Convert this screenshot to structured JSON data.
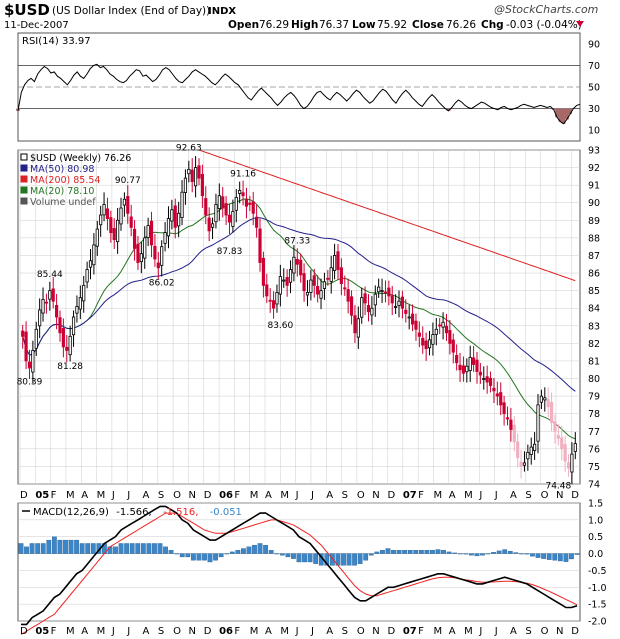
{
  "header": {
    "symbol": "$USD",
    "title": "(US Dollar Index (End of Day))",
    "exchange": "INDX",
    "date": "11-Dec-2007",
    "open_label": "Open",
    "open": "76.29",
    "high_label": "High",
    "high": "76.37",
    "low_label": "Low",
    "low": "75.92",
    "close_label": "Close",
    "close": "76.26",
    "chg_label": "Chg",
    "chg": "-0.03 (-0.04%)",
    "logo": "@StockCharts.com"
  },
  "colors": {
    "up": "#000000",
    "down": "#cc0033",
    "down_light": "#f0b0c0",
    "ma50": "#22228a",
    "ma200": "#dd2222",
    "ma20": "#227722",
    "hist": "#3a86c8",
    "signal": "#ee2222",
    "macd": "#000000",
    "grid": "#cccccc",
    "border": "#555555"
  },
  "chart_data": [
    {
      "type": "line",
      "panel": "rsi",
      "label": "RSI(14) 33.97",
      "ylim": [
        0,
        100
      ],
      "y_ticks": [
        "90",
        "70",
        "50",
        "30",
        "10"
      ],
      "reference_lines": [
        70,
        50,
        30
      ],
      "values": [
        28,
        45,
        52,
        56,
        58,
        55,
        62,
        66,
        69,
        67,
        63,
        64,
        60,
        58,
        55,
        52,
        56,
        61,
        64,
        60,
        58,
        62,
        67,
        70,
        71,
        68,
        69,
        66,
        62,
        60,
        57,
        55,
        54,
        56,
        60,
        63,
        66,
        65,
        60,
        61,
        58,
        55,
        57,
        61,
        66,
        68,
        66,
        62,
        58,
        55,
        54,
        57,
        60,
        64,
        66,
        64,
        62,
        60,
        57,
        54,
        52,
        55,
        59,
        62,
        60,
        57,
        54,
        52,
        48,
        44,
        40,
        38,
        42,
        46,
        49,
        46,
        43,
        40,
        36,
        33,
        36,
        40,
        43,
        45,
        42,
        38,
        33,
        30,
        32,
        36,
        41,
        45,
        46,
        43,
        40,
        38,
        42,
        45,
        43,
        40,
        37,
        40,
        44,
        47,
        45,
        41,
        38,
        35,
        37,
        41,
        45,
        48,
        46,
        42,
        38,
        35,
        40,
        44,
        47,
        44,
        40,
        37,
        34,
        32,
        36,
        40,
        43,
        40,
        36,
        33,
        30,
        28,
        31,
        35,
        38,
        36,
        33,
        31,
        30,
        32,
        34,
        36,
        35,
        33,
        31,
        30,
        29,
        31,
        32,
        30,
        29,
        30,
        31,
        33,
        34,
        33,
        32,
        31,
        32,
        33,
        32,
        31,
        32,
        29,
        22,
        18,
        16,
        20,
        25,
        30,
        33,
        34
      ]
    },
    {
      "type": "candlestick",
      "panel": "price",
      "title": "$USD (Weekly) 76.26",
      "ylim": [
        74,
        93
      ],
      "y_ticks": [
        "93",
        "92",
        "91",
        "90",
        "89",
        "88",
        "87",
        "86",
        "85",
        "84",
        "83",
        "82",
        "81",
        "80",
        "79",
        "78",
        "77",
        "76",
        "75",
        "74"
      ],
      "x_ticks": [
        "D",
        "05",
        "F",
        "M",
        "A",
        "M",
        "J",
        "J",
        "A",
        "S",
        "O",
        "N",
        "D",
        "06",
        "F",
        "M",
        "A",
        "M",
        "J",
        "J",
        "A",
        "S",
        "O",
        "N",
        "D",
        "07",
        "F",
        "M",
        "A",
        "M",
        "J",
        "J",
        "A",
        "S",
        "O",
        "N",
        "D"
      ],
      "legend": [
        {
          "text": "$USD (Weekly) 76.26",
          "color": "#000000"
        },
        {
          "text": "MA(50) 80.98",
          "color": "#22228a"
        },
        {
          "text": "MA(200) 85.54",
          "color": "#dd2222"
        },
        {
          "text": "MA(20) 78.10",
          "color": "#227722"
        },
        {
          "text": "Volume undef",
          "color": "#555555"
        }
      ],
      "annotations": [
        {
          "text": "80.39",
          "week": 2,
          "value": 80.39,
          "pos": "below"
        },
        {
          "text": "85.44",
          "week": 8,
          "value": 85.44,
          "pos": "above"
        },
        {
          "text": "81.28",
          "week": 14,
          "value": 81.28,
          "pos": "below"
        },
        {
          "text": "90.77",
          "week": 31,
          "value": 90.77,
          "pos": "above"
        },
        {
          "text": "86.02",
          "week": 41,
          "value": 86.02,
          "pos": "below"
        },
        {
          "text": "92.63",
          "week": 49,
          "value": 92.63,
          "pos": "above"
        },
        {
          "text": "91.16",
          "week": 65,
          "value": 91.16,
          "pos": "above"
        },
        {
          "text": "87.83",
          "week": 61,
          "value": 87.83,
          "pos": "below"
        },
        {
          "text": "83.60",
          "week": 76,
          "value": 83.6,
          "pos": "below"
        },
        {
          "text": "87.33",
          "week": 81,
          "value": 87.33,
          "pos": "above"
        },
        {
          "text": "74.48",
          "week": 158,
          "value": 74.48,
          "pos": "below"
        }
      ],
      "closes": [
        82.4,
        81.0,
        80.6,
        81.6,
        82.8,
        83.9,
        84.5,
        84.3,
        85.0,
        84.4,
        83.5,
        82.6,
        81.8,
        81.6,
        82.4,
        83.5,
        84.1,
        84.6,
        85.3,
        86.2,
        86.7,
        87.6,
        88.5,
        89.3,
        89.9,
        89.1,
        88.3,
        87.9,
        89.0,
        89.7,
        90.2,
        89.4,
        88.6,
        87.4,
        86.6,
        87.1,
        88.0,
        88.7,
        87.6,
        86.8,
        86.3,
        87.5,
        88.3,
        89.1,
        89.6,
        88.6,
        89.4,
        90.6,
        91.4,
        91.9,
        91.2,
        92.0,
        91.4,
        90.4,
        89.3,
        88.4,
        88.8,
        89.9,
        90.4,
        89.7,
        89.3,
        88.9,
        89.5,
        90.3,
        90.7,
        90.4,
        89.8,
        89.9,
        89.4,
        88.6,
        86.6,
        85.3,
        84.7,
        84.4,
        84.0,
        84.9,
        85.8,
        85.6,
        85.3,
        86.2,
        86.9,
        86.5,
        85.9,
        85.0,
        84.9,
        85.6,
        85.3,
        84.8,
        85.0,
        85.5,
        85.7,
        86.3,
        87.0,
        86.2,
        85.4,
        85.1,
        84.4,
        83.6,
        82.6,
        83.4,
        84.6,
        84.3,
        83.8,
        84.0,
        84.8,
        85.2,
        85.0,
        84.9,
        84.7,
        84.3,
        84.1,
        84.4,
        84.0,
        83.7,
        83.5,
        83.1,
        82.8,
        82.4,
        81.9,
        81.7,
        82.2,
        82.5,
        82.8,
        83.0,
        83.2,
        82.6,
        82.0,
        81.5,
        80.9,
        80.5,
        80.3,
        80.7,
        81.2,
        80.8,
        80.4,
        80.2,
        80.0,
        79.8,
        79.6,
        79.3,
        79.0,
        78.5,
        78.0,
        77.7,
        77.1,
        76.4,
        75.5,
        75.0,
        75.2,
        75.8,
        76.1,
        76.26,
        78.5,
        79.0,
        78.9,
        78.4,
        77.5,
        77.0,
        76.6,
        76.0,
        75.3,
        74.9,
        75.7,
        76.3
      ]
    },
    {
      "type": "line",
      "panel": "macd",
      "label": "MACD(12,26,9) -1.566, -1.516, -0.051",
      "label_parts": [
        "MACD(12,26,9)",
        "-1.566,",
        "-1.516,",
        "-0.051"
      ],
      "ylim": [
        -2.0,
        1.5
      ],
      "y_ticks": [
        "1.5",
        "1.0",
        "0.5",
        "0.0",
        "-0.5",
        "-1.0",
        "-1.5",
        "-2.0"
      ],
      "series_macd": [
        -2.1,
        -2.1,
        -1.9,
        -1.8,
        -1.7,
        -1.5,
        -1.3,
        -1.2,
        -1.0,
        -0.8,
        -0.6,
        -0.5,
        -0.3,
        -0.1,
        0.1,
        0.3,
        0.4,
        0.5,
        0.7,
        0.8,
        0.9,
        1.0,
        1.1,
        1.2,
        1.3,
        1.4,
        1.4,
        1.3,
        1.2,
        1.0,
        0.9,
        0.7,
        0.6,
        0.5,
        0.4,
        0.4,
        0.5,
        0.6,
        0.7,
        0.8,
        0.9,
        1.0,
        1.1,
        1.2,
        1.2,
        1.1,
        1.0,
        0.9,
        0.8,
        0.7,
        0.5,
        0.4,
        0.3,
        0.1,
        -0.1,
        -0.3,
        -0.5,
        -0.7,
        -0.9,
        -1.1,
        -1.3,
        -1.4,
        -1.4,
        -1.3,
        -1.2,
        -1.1,
        -1.0,
        -1.0,
        -0.95,
        -0.9,
        -0.85,
        -0.8,
        -0.75,
        -0.7,
        -0.65,
        -0.6,
        -0.6,
        -0.65,
        -0.7,
        -0.75,
        -0.8,
        -0.85,
        -0.9,
        -0.9,
        -0.85,
        -0.8,
        -0.75,
        -0.7,
        -0.75,
        -0.8,
        -0.85,
        -0.9,
        -1.0,
        -1.1,
        -1.2,
        -1.3,
        -1.4,
        -1.5,
        -1.6,
        -1.6,
        -1.55
      ],
      "series_signal": [
        -2.4,
        -2.3,
        -2.2,
        -2.1,
        -2.0,
        -1.9,
        -1.8,
        -1.6,
        -1.4,
        -1.2,
        -1.0,
        -0.8,
        -0.6,
        -0.4,
        -0.2,
        0.0,
        0.2,
        0.3,
        0.4,
        0.5,
        0.6,
        0.7,
        0.8,
        0.9,
        1.0,
        1.1,
        1.2,
        1.2,
        1.2,
        1.1,
        1.0,
        0.9,
        0.8,
        0.7,
        0.65,
        0.6,
        0.6,
        0.6,
        0.65,
        0.7,
        0.75,
        0.8,
        0.85,
        0.9,
        0.95,
        1.0,
        1.0,
        0.95,
        0.9,
        0.85,
        0.75,
        0.65,
        0.55,
        0.4,
        0.25,
        0.05,
        -0.15,
        -0.35,
        -0.55,
        -0.75,
        -0.95,
        -1.1,
        -1.2,
        -1.25,
        -1.25,
        -1.2,
        -1.15,
        -1.1,
        -1.05,
        -1.0,
        -0.95,
        -0.9,
        -0.85,
        -0.8,
        -0.75,
        -0.72,
        -0.7,
        -0.7,
        -0.72,
        -0.75,
        -0.78,
        -0.8,
        -0.83,
        -0.85,
        -0.85,
        -0.84,
        -0.83,
        -0.82,
        -0.82,
        -0.83,
        -0.85,
        -0.88,
        -0.92,
        -0.98,
        -1.05,
        -1.12,
        -1.2,
        -1.28,
        -1.36,
        -1.44,
        -1.52
      ]
    }
  ]
}
